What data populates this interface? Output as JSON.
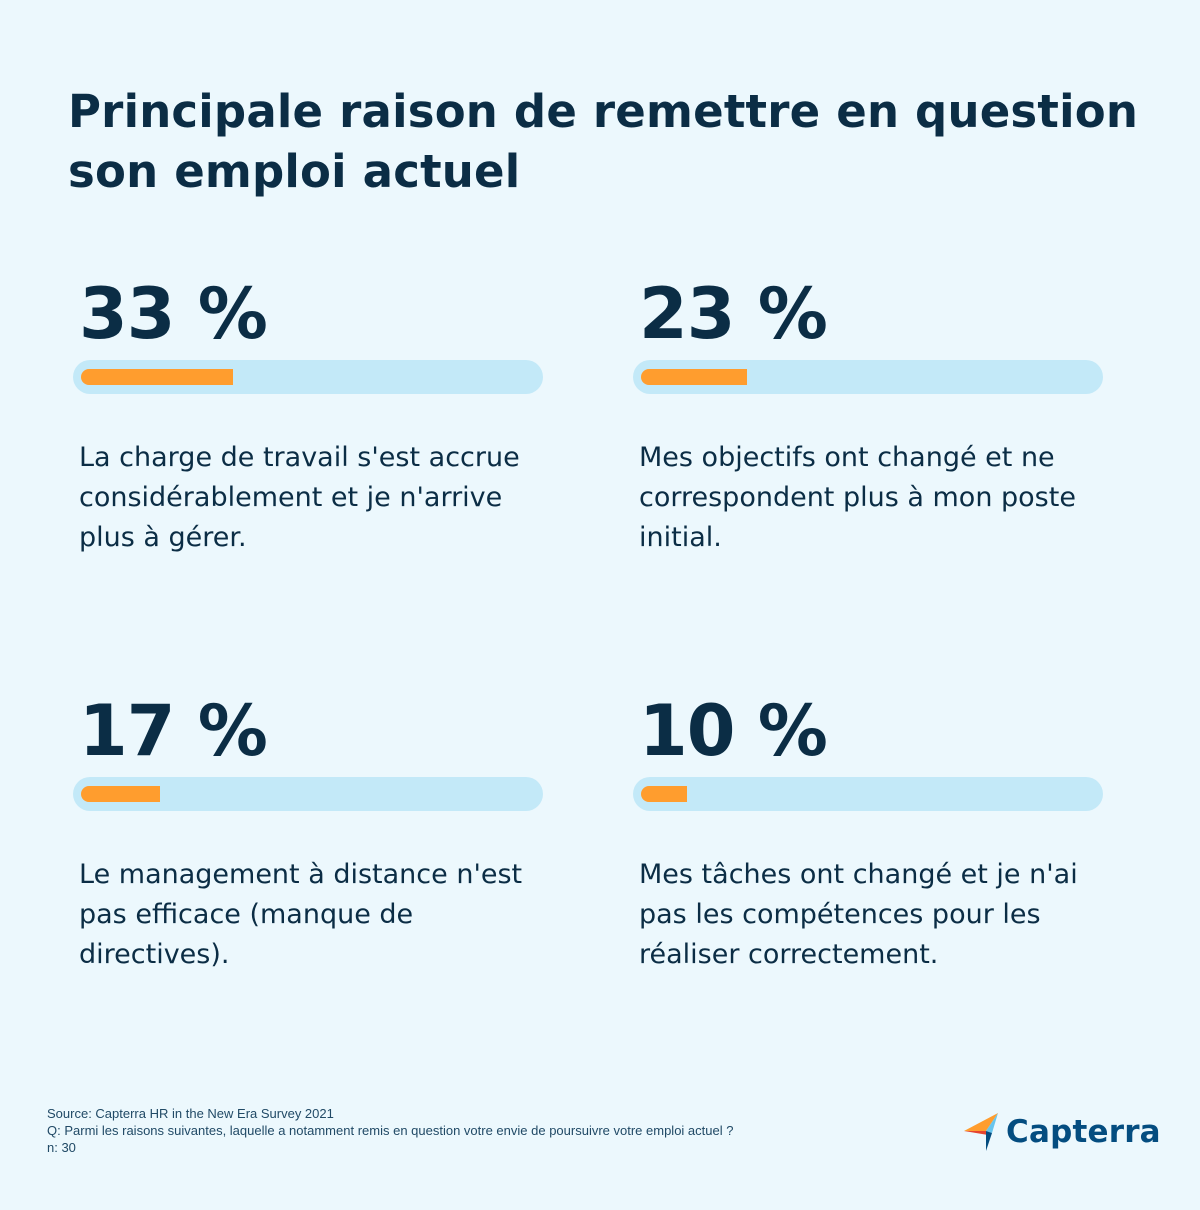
{
  "title": "Principale raison de remettre en question son emploi actuel",
  "chart_data": {
    "type": "bar",
    "title": "Principale raison de remettre en question son emploi actuel",
    "unit": "%",
    "xlim": [
      0,
      100
    ],
    "items": [
      {
        "label": "33 %",
        "value": 33,
        "description": "La charge de travail s'est accrue considérablement et je n'arrive plus à gérer."
      },
      {
        "label": "23 %",
        "value": 23,
        "description": "Mes objectifs ont changé et ne correspondent plus à mon poste initial."
      },
      {
        "label": "17 %",
        "value": 17,
        "description": "Le management à distance n'est pas efficace (manque de directives)."
      },
      {
        "label": "10 %",
        "value": 10,
        "description": "Mes tâches ont changé et je n'ai pas les compétences pour les réaliser correctement."
      }
    ]
  },
  "footer": {
    "source": "Source: Capterra HR in the New Era Survey 2021",
    "question": "Q: Parmi les raisons suivantes, laquelle a notamment remis en question votre envie de poursuivre votre emploi actuel ?",
    "n": "n: 30"
  },
  "logo": {
    "text": "Capterra",
    "icon": "capterra-arrow-icon"
  },
  "colors": {
    "background": "#ecf8fd",
    "text": "#0b2d45",
    "track": "#c3e9f8",
    "fill": "#ff9d2e",
    "logo": "#044d80"
  }
}
